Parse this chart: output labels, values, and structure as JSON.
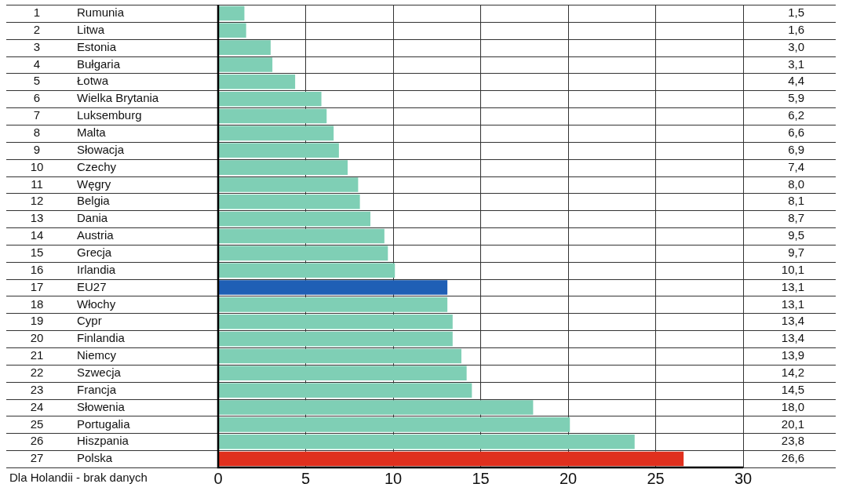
{
  "chart_data": {
    "type": "bar",
    "orientation": "horizontal",
    "categories": [
      "1 Rumunia",
      "2 Litwa",
      "3 Estonia",
      "4 Bułgaria",
      "5 Łotwa",
      "6 Wielka Brytania",
      "7 Luksemburg",
      "8 Malta",
      "9 Słowacja",
      "10 Czechy",
      "11 Węgry",
      "12 Belgia",
      "13 Dania",
      "14 Austria",
      "15 Grecja",
      "16 Irlandia",
      "17 EU27",
      "18 Włochy",
      "19 Cypr",
      "20 Finlandia",
      "21 Niemcy",
      "22 Szwecja",
      "23 Francja",
      "24 Słowenia",
      "25 Portugalia",
      "26 Hiszpania",
      "27 Polska"
    ],
    "values": [
      1.5,
      1.6,
      3.0,
      3.1,
      4.4,
      5.9,
      6.2,
      6.6,
      6.9,
      7.4,
      8.0,
      8.1,
      8.7,
      9.5,
      9.7,
      10.1,
      13.1,
      13.1,
      13.4,
      13.4,
      13.9,
      14.2,
      14.5,
      18.0,
      20.1,
      23.8,
      26.6
    ],
    "value_labels": [
      "1,5",
      "1,6",
      "3,0",
      "3,1",
      "4,4",
      "5,9",
      "6,2",
      "6,6",
      "6,9",
      "7,4",
      "8,0",
      "8,1",
      "8,7",
      "9,5",
      "9,7",
      "10,1",
      "13,1",
      "13,1",
      "13,4",
      "13,4",
      "13,9",
      "14,2",
      "14,5",
      "18,0",
      "20,1",
      "23,8",
      "26,6"
    ],
    "colors": [
      "#7fcfb5",
      "#7fcfb5",
      "#7fcfb5",
      "#7fcfb5",
      "#7fcfb5",
      "#7fcfb5",
      "#7fcfb5",
      "#7fcfb5",
      "#7fcfb5",
      "#7fcfb5",
      "#7fcfb5",
      "#7fcfb5",
      "#7fcfb5",
      "#7fcfb5",
      "#7fcfb5",
      "#7fcfb5",
      "#1f5fb5",
      "#7fcfb5",
      "#7fcfb5",
      "#7fcfb5",
      "#7fcfb5",
      "#7fcfb5",
      "#7fcfb5",
      "#7fcfb5",
      "#7fcfb5",
      "#7fcfb5",
      "#e0301e"
    ],
    "xlim": [
      0,
      30
    ],
    "xticks": [
      0,
      5,
      10,
      15,
      20,
      25,
      30
    ],
    "grid": true,
    "legend": false,
    "annotations": [
      "Dla Holandii - brak danych"
    ]
  }
}
